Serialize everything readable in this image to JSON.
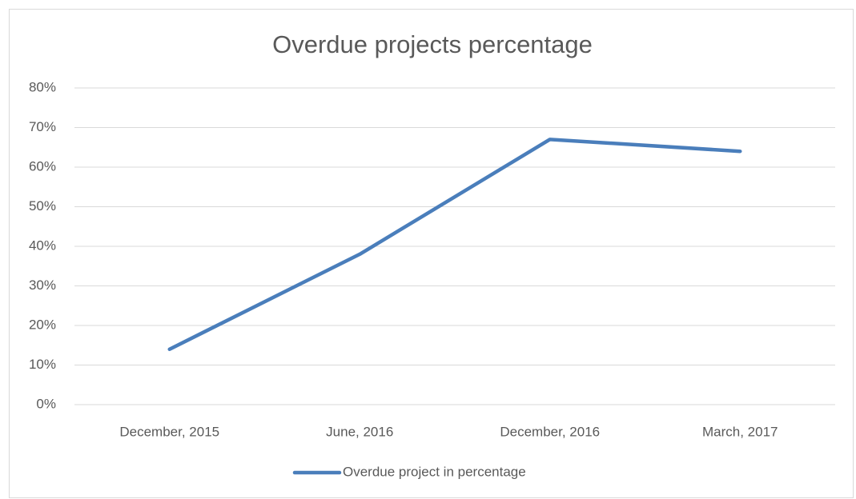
{
  "chart_data": {
    "type": "line",
    "title": "Overdue projects percentage",
    "categories": [
      "December, 2015",
      "June, 2016",
      "December, 2016",
      "March, 2017"
    ],
    "series": [
      {
        "name": "Overdue project in percentage",
        "color": "#4a7ebb",
        "values": [
          14,
          38,
          67,
          64
        ]
      }
    ],
    "ylim": [
      0,
      80
    ],
    "yticks": [
      {
        "value": 0,
        "label": "0%"
      },
      {
        "value": 10,
        "label": "10%"
      },
      {
        "value": 20,
        "label": "20%"
      },
      {
        "value": 30,
        "label": "30%"
      },
      {
        "value": 40,
        "label": "40%"
      },
      {
        "value": 50,
        "label": "50%"
      },
      {
        "value": 60,
        "label": "60%"
      },
      {
        "value": 70,
        "label": "70%"
      },
      {
        "value": 80,
        "label": "80%"
      }
    ],
    "grid": true,
    "legend": "bottom"
  }
}
